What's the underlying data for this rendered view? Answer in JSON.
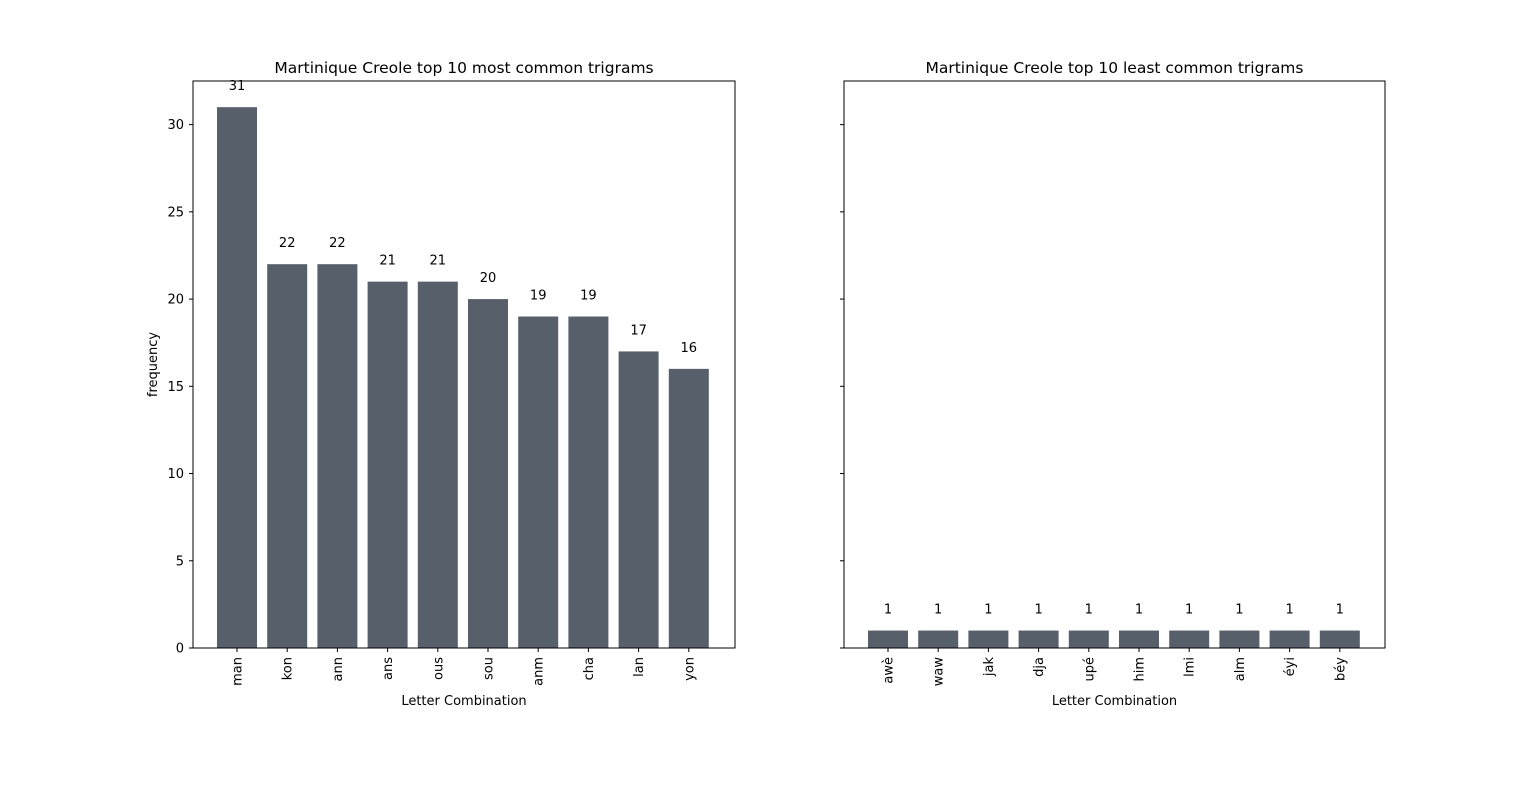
{
  "chart_data": [
    {
      "type": "bar",
      "title": "Martinique Creole top 10 most common trigrams",
      "xlabel": "Letter Combination",
      "ylabel": "frequency",
      "categories": [
        "man",
        "kon",
        "ann",
        "ans",
        "ous",
        "sou",
        "anm",
        "cha",
        "lan",
        "yon"
      ],
      "values": [
        31,
        22,
        22,
        21,
        21,
        20,
        19,
        19,
        17,
        16
      ],
      "ylim": [
        0,
        32.5
      ],
      "yticks": [
        0,
        5,
        10,
        15,
        20,
        25,
        30
      ],
      "show_ytick_labels": true,
      "grid": false,
      "data_labels": true
    },
    {
      "type": "bar",
      "title": "Martinique Creole top 10 least common trigrams",
      "xlabel": "Letter Combination",
      "ylabel": "",
      "categories": [
        "awè",
        "waw",
        "jak",
        "dja",
        "upé",
        "him",
        "lmi",
        "alm",
        "éyi",
        "béy"
      ],
      "values": [
        1,
        1,
        1,
        1,
        1,
        1,
        1,
        1,
        1,
        1
      ],
      "ylim": [
        0,
        32.5
      ],
      "yticks": [
        0,
        5,
        10,
        15,
        20,
        25,
        30
      ],
      "show_ytick_labels": false,
      "grid": false,
      "data_labels": true
    }
  ],
  "colors": {
    "bar": "#575f6b",
    "axis": "#000000"
  }
}
